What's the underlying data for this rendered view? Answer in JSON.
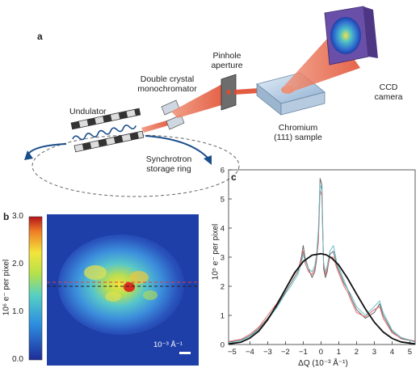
{
  "panel_a": {
    "letter": "a",
    "labels": {
      "undulator": "Undulator",
      "mono_1": "Double crystal",
      "mono_2": "monochromator",
      "pinhole_1": "Pinhole",
      "pinhole_2": "aperture",
      "ccd_1": "CCD",
      "ccd_2": "camera",
      "sample_1": "Chromium",
      "sample_2": "(111) sample",
      "ring_1": "Synchrotron",
      "ring_2": "storage ring"
    },
    "colors": {
      "beam": "#e8684a",
      "sample": "#b8cfe6",
      "ccd": "#6a4fa8"
    }
  },
  "panel_b": {
    "letter": "b",
    "ylabel": "10⁶ e⁻ per pixel",
    "colorbar_ticks": [
      "3.0",
      "2.0",
      "1.0",
      "0.0"
    ],
    "scale_bar_label": "10⁻³ Å⁻¹",
    "colors": {
      "background": "#1f3fa8",
      "dashed_line": "#e43b3b"
    }
  },
  "panel_c": {
    "letter": "c"
  },
  "chart_data": {
    "type": "line",
    "xlabel": "ΔQ (10⁻³ Å⁻¹)",
    "ylabel": "10⁵ e⁻ per pixel",
    "xlim": [
      -5.2,
      5.3
    ],
    "ylim": [
      0,
      6
    ],
    "xticks": [
      "−5",
      "−4",
      "−3",
      "−2",
      "−1",
      "0",
      "1",
      "2",
      "3",
      "4",
      "5"
    ],
    "yticks": [
      "0",
      "1",
      "2",
      "3",
      "4",
      "5",
      "6"
    ],
    "series": [
      {
        "color": "#555555",
        "x": [
          -5.2,
          -4.5,
          -4.0,
          -3.5,
          -3.0,
          -2.5,
          -2.0,
          -1.7,
          -1.5,
          -1.3,
          -1.1,
          -1.0,
          -0.9,
          -0.7,
          -0.5,
          -0.35,
          -0.25,
          -0.15,
          -0.05,
          0.05,
          0.1,
          0.15,
          0.25,
          0.35,
          0.5,
          0.7,
          0.9,
          1.1,
          1.3,
          1.5,
          1.7,
          2.0,
          2.5,
          3.0,
          3.3,
          3.5,
          4.0,
          4.5,
          5.3
        ],
        "y": [
          0.08,
          0.15,
          0.3,
          0.55,
          0.9,
          1.3,
          1.8,
          2.1,
          2.3,
          2.5,
          3.0,
          3.4,
          3.0,
          2.6,
          2.3,
          2.5,
          2.9,
          3.6,
          5.7,
          5.5,
          4.0,
          2.6,
          2.3,
          2.5,
          3.1,
          3.2,
          2.7,
          2.4,
          2.1,
          1.9,
          1.6,
          1.2,
          0.9,
          1.1,
          1.4,
          1.0,
          0.45,
          0.2,
          0.1
        ]
      },
      {
        "color": "#e25b5b",
        "x": [
          -5.2,
          -4.5,
          -4.0,
          -3.5,
          -3.0,
          -2.5,
          -2.0,
          -1.7,
          -1.5,
          -1.3,
          -1.1,
          -1.0,
          -0.9,
          -0.7,
          -0.5,
          -0.35,
          -0.25,
          -0.15,
          -0.05,
          0.05,
          0.1,
          0.15,
          0.25,
          0.35,
          0.5,
          0.7,
          0.9,
          1.1,
          1.3,
          1.5,
          1.7,
          2.0,
          2.5,
          3.0,
          3.3,
          3.5,
          4.0,
          4.5,
          5.3
        ],
        "y": [
          0.1,
          0.18,
          0.35,
          0.6,
          1.0,
          1.4,
          1.9,
          2.2,
          2.4,
          2.6,
          2.9,
          3.2,
          2.8,
          2.5,
          2.4,
          2.6,
          3.0,
          3.5,
          5.3,
          5.1,
          3.8,
          2.7,
          2.4,
          2.6,
          3.0,
          3.0,
          2.6,
          2.3,
          2.0,
          1.8,
          1.5,
          1.1,
          0.95,
          1.2,
          1.3,
          0.9,
          0.4,
          0.22,
          0.12
        ]
      },
      {
        "color": "#5bbcc8",
        "x": [
          -5.2,
          -4.5,
          -4.0,
          -3.5,
          -3.0,
          -2.5,
          -2.0,
          -1.7,
          -1.5,
          -1.3,
          -1.1,
          -1.0,
          -0.9,
          -0.7,
          -0.5,
          -0.35,
          -0.25,
          -0.15,
          -0.05,
          0.05,
          0.1,
          0.15,
          0.25,
          0.35,
          0.5,
          0.7,
          0.9,
          1.1,
          1.3,
          1.5,
          1.7,
          2.0,
          2.5,
          3.0,
          3.3,
          3.5,
          4.0,
          4.5,
          5.3
        ],
        "y": [
          0.06,
          0.14,
          0.28,
          0.5,
          0.85,
          1.25,
          1.75,
          2.0,
          2.2,
          2.4,
          2.8,
          3.1,
          2.9,
          2.6,
          2.5,
          2.7,
          3.1,
          3.9,
          5.5,
          5.3,
          3.9,
          2.8,
          2.5,
          2.7,
          3.2,
          3.4,
          2.8,
          2.5,
          2.2,
          1.9,
          1.7,
          1.3,
          1.0,
          1.3,
          1.5,
          1.1,
          0.5,
          0.25,
          0.08
        ]
      },
      {
        "color": "#111111",
        "x": [
          -5.2,
          -4.5,
          -4.0,
          -3.5,
          -3.0,
          -2.5,
          -2.0,
          -1.5,
          -1.0,
          -0.5,
          0.0,
          0.3,
          0.6,
          1.0,
          1.5,
          2.0,
          2.5,
          3.0,
          3.5,
          4.0,
          4.5,
          5.3
        ],
        "y": [
          0.02,
          0.08,
          0.22,
          0.46,
          0.85,
          1.35,
          1.9,
          2.45,
          2.85,
          3.07,
          3.12,
          3.08,
          2.97,
          2.73,
          2.27,
          1.74,
          1.22,
          0.77,
          0.43,
          0.21,
          0.09,
          0.02
        ]
      }
    ]
  }
}
